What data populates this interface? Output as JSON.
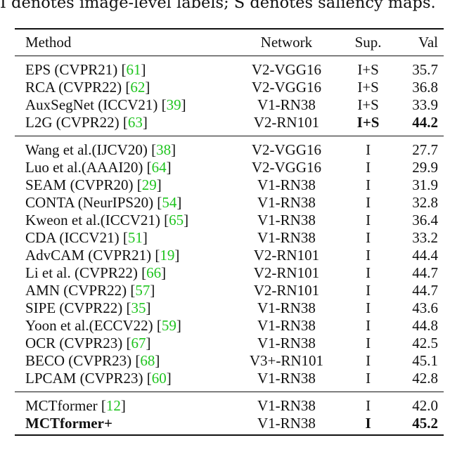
{
  "caption": "I denotes image-level labels; S denotes saliency maps.",
  "headers": {
    "method": "Method",
    "network": "Network",
    "sup": "Sup.",
    "val": "Val"
  },
  "groups": [
    [
      {
        "method": "EPS (CVPR21) [",
        "ref": "61",
        "network": "V2-VGG16",
        "sup": "I+S",
        "val": "35.7"
      },
      {
        "method": "RCA (CVPR22) [",
        "ref": "62",
        "network": "V2-VGG16",
        "sup": "I+S",
        "val": "36.8"
      },
      {
        "method": "AuxSegNet (ICCV21) [",
        "ref": "39",
        "network": "V1-RN38",
        "sup": "I+S",
        "val": "33.9"
      },
      {
        "method": "L2G (CVPR22) [",
        "ref": "63",
        "network": "V2-RN101",
        "sup": "I+S",
        "val": "44.2"
      }
    ],
    [
      {
        "method": "Wang et al.(IJCV20) [",
        "ref": "38",
        "network": "V2-VGG16",
        "sup": "I",
        "val": "27.7"
      },
      {
        "method": "Luo et al.(AAAI20) [",
        "ref": "64",
        "network": "V2-VGG16",
        "sup": "I",
        "val": "29.9"
      },
      {
        "method": "SEAM (CVPR20) [",
        "ref": "29",
        "network": "V1-RN38",
        "sup": "I",
        "val": "31.9"
      },
      {
        "method": "CONTA (NeurIPS20) [",
        "ref": "54",
        "network": "V1-RN38",
        "sup": "I",
        "val": "32.8"
      },
      {
        "method": "Kweon et al.(ICCV21) [",
        "ref": "65",
        "network": "V1-RN38",
        "sup": "I",
        "val": "36.4"
      },
      {
        "method": "CDA (ICCV21) [",
        "ref": "51",
        "network": "V1-RN38",
        "sup": "I",
        "val": "33.2"
      },
      {
        "method": "AdvCAM (CVPR21) [",
        "ref": "19",
        "network": "V2-RN101",
        "sup": "I",
        "val": "44.4"
      },
      {
        "method": "Li et al. (CVPR22) [",
        "ref": "66",
        "network": "V2-RN101",
        "sup": "I",
        "val": "44.7"
      },
      {
        "method": "AMN (CVPR22) [",
        "ref": "57",
        "network": "V2-RN101",
        "sup": "I",
        "val": "44.7"
      },
      {
        "method": "SIPE (CVPR22) [",
        "ref": "35",
        "network": "V1-RN38",
        "sup": "I",
        "val": "43.6"
      },
      {
        "method": "Yoon et al.(ECCV22) [",
        "ref": "59",
        "network": "V1-RN38",
        "sup": "I",
        "val": "44.8"
      },
      {
        "method": "OCR (CVPR23) [",
        "ref": "67",
        "network": "V1-RN38",
        "sup": "I",
        "val": "42.5"
      },
      {
        "method": "BECO (CVPR23) [",
        "ref": "68",
        "network": "V3+-RN101",
        "sup": "I",
        "val": "45.1"
      },
      {
        "method": "LPCAM (CVPR23) [",
        "ref": "60",
        "network": "V1-RN38",
        "sup": "I",
        "val": "42.8"
      }
    ],
    [
      {
        "method": "MCTformer [",
        "ref": "12",
        "network": "V1-RN38",
        "sup": "I",
        "val": "42.0"
      },
      {
        "method": "MCTformer+",
        "network": "V1-RN38",
        "sup": "I",
        "val": "45.2"
      }
    ]
  ],
  "colors": {
    "reference_link": "#1ec41e"
  }
}
